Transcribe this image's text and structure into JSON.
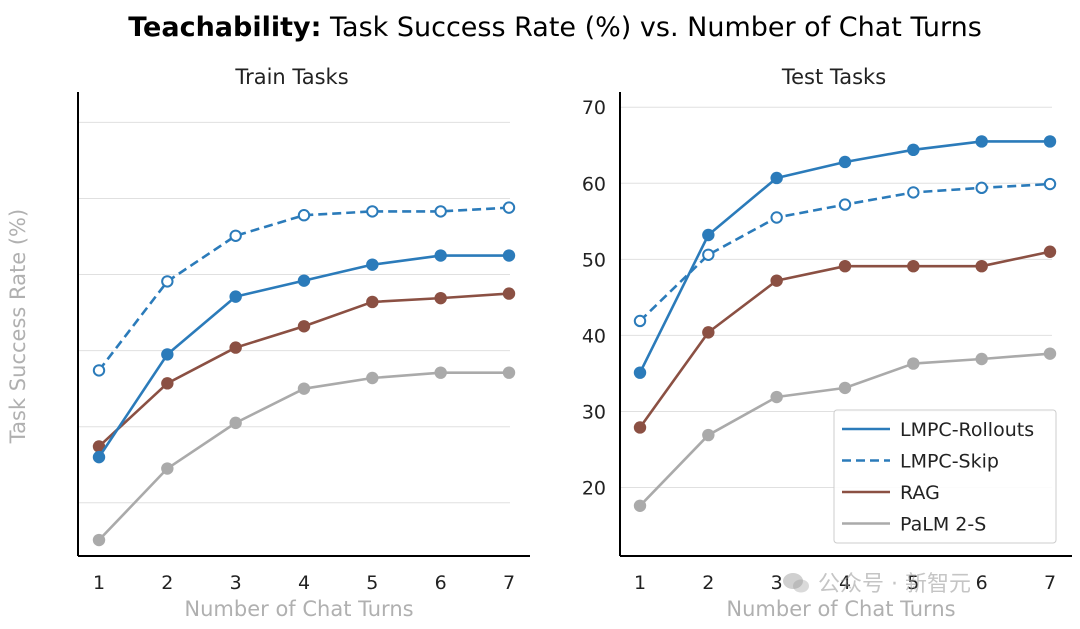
{
  "title": {
    "bold": "Teachability:",
    "rest": " Task Success Rate (%) vs. Number of Chat Turns"
  },
  "shared_ylabel": "Task Success Rate (%)",
  "watermark": {
    "text": "公众号 · 新智元"
  },
  "colors": {
    "lmpc_rollouts": "#2b7bba",
    "lmpc_skip": "#2b7bba",
    "rag": "#8b5043",
    "palm": "#aaaaaa",
    "axis": "#000000",
    "grid": "#e0e0e0",
    "axis_label": "#b0b0b0"
  },
  "chart_data": [
    {
      "type": "line",
      "title": "Train Tasks",
      "xlabel": "Number of Chat Turns",
      "ylabel": "Task Success Rate (%)",
      "x": [
        1,
        2,
        3,
        4,
        5,
        6,
        7
      ],
      "xlim": [
        0.7,
        7.3
      ],
      "ylim": [
        13,
        74
      ],
      "y_gridlines": [
        20,
        30,
        40,
        50,
        60,
        70
      ],
      "y_ticklabels_shown": false,
      "series": [
        {
          "name": "LMPC-Rollouts",
          "key": "lmpc_rollouts",
          "style": "solid",
          "marker": "filled",
          "values": [
            26,
            39.5,
            47.1,
            49.2,
            51.3,
            52.5,
            52.5
          ]
        },
        {
          "name": "LMPC-Skip",
          "key": "lmpc_skip",
          "style": "dashed",
          "marker": "open",
          "values": [
            37.4,
            49.1,
            55.1,
            57.8,
            58.3,
            58.3,
            58.8
          ]
        },
        {
          "name": "RAG",
          "key": "rag",
          "style": "solid",
          "marker": "filled",
          "values": [
            27.4,
            35.7,
            40.4,
            43.2,
            46.4,
            46.9,
            47.5
          ]
        },
        {
          "name": "PaLM 2-S",
          "key": "palm",
          "style": "solid",
          "marker": "filled",
          "values": [
            15.1,
            24.5,
            30.5,
            35.0,
            36.4,
            37.1,
            37.1
          ]
        }
      ]
    },
    {
      "type": "line",
      "title": "Test Tasks",
      "xlabel": "Number of Chat Turns",
      "ylabel": "",
      "x": [
        1,
        2,
        3,
        4,
        5,
        6,
        7
      ],
      "xlim": [
        0.7,
        7.3
      ],
      "ylim": [
        11,
        72
      ],
      "y_ticks": [
        20,
        30,
        40,
        50,
        60,
        70
      ],
      "y_ticklabels_shown": true,
      "legend_position": "lower-right",
      "series": [
        {
          "name": "LMPC-Rollouts",
          "key": "lmpc_rollouts",
          "style": "solid",
          "marker": "filled",
          "values": [
            35.1,
            53.2,
            60.7,
            62.8,
            64.4,
            65.5,
            65.5
          ]
        },
        {
          "name": "LMPC-Skip",
          "key": "lmpc_skip",
          "style": "dashed",
          "marker": "open",
          "values": [
            41.9,
            50.6,
            55.5,
            57.2,
            58.8,
            59.4,
            59.9
          ]
        },
        {
          "name": "RAG",
          "key": "rag",
          "style": "solid",
          "marker": "filled",
          "values": [
            27.9,
            40.4,
            47.2,
            49.1,
            49.1,
            49.1,
            51.0
          ]
        },
        {
          "name": "PaLM 2-S",
          "key": "palm",
          "style": "solid",
          "marker": "filled",
          "values": [
            17.6,
            26.9,
            31.9,
            33.1,
            36.3,
            36.9,
            37.6
          ]
        }
      ]
    }
  ]
}
